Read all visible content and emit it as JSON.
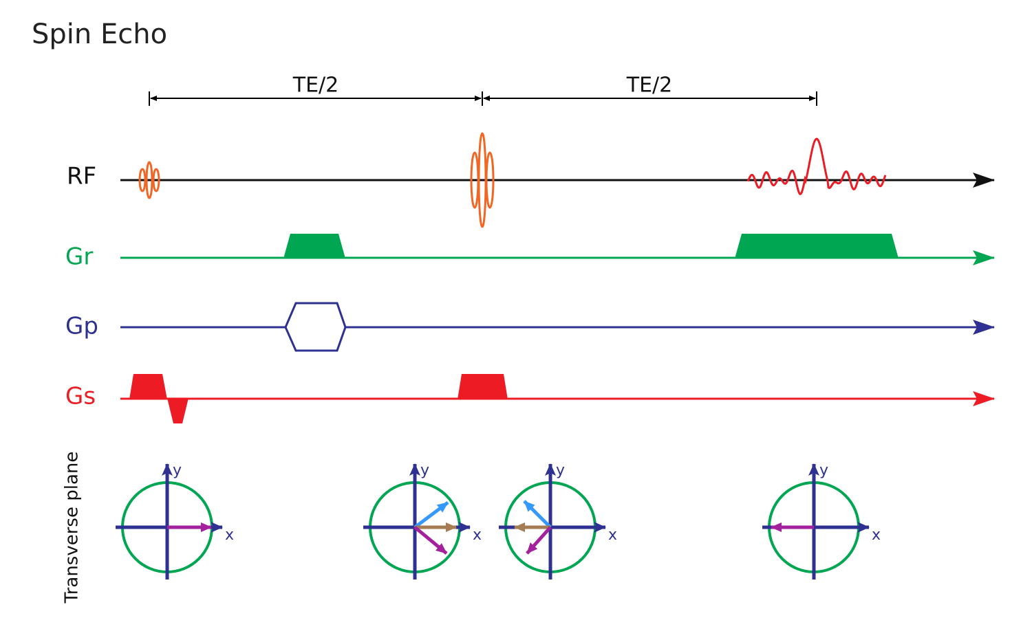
{
  "title": "Spin Echo",
  "intervals": [
    {
      "label": "TE/2"
    },
    {
      "label": "TE/2"
    }
  ],
  "channels": [
    {
      "label": "RF"
    },
    {
      "label": "Gr"
    },
    {
      "label": "Gp"
    },
    {
      "label": "Gs"
    }
  ],
  "side_label": "Transverse plane",
  "phase_diagrams": [
    {
      "x_label": "x",
      "y_label": "y"
    },
    {
      "x_label": "x",
      "y_label": "y"
    },
    {
      "x_label": "x",
      "y_label": "y"
    },
    {
      "x_label": "x",
      "y_label": "y"
    }
  ]
}
